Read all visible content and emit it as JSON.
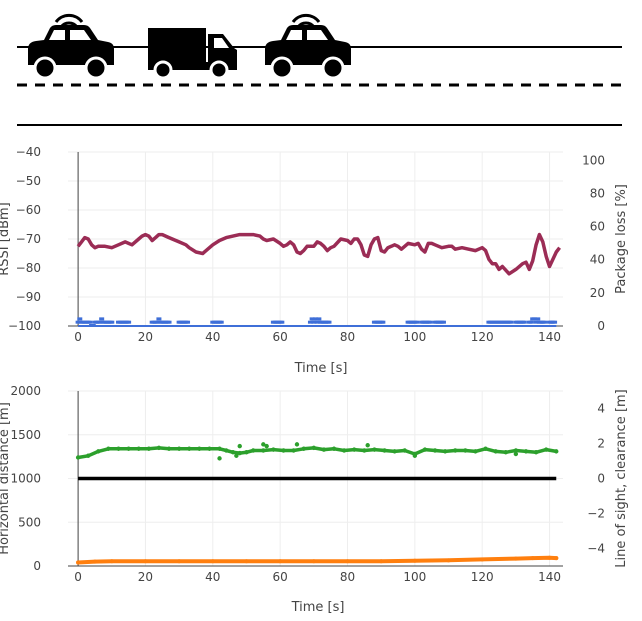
{
  "colors": {
    "rssi": "#9b2c55",
    "package_loss": "#3f6fd8",
    "horizontal_distance": "#ff7f0e",
    "clearance_green": "#2ca02c",
    "line_of_sight": "#000000"
  },
  "scene": {
    "icons": [
      "car-wifi-icon",
      "truck-icon",
      "car-wifi-icon"
    ],
    "road_lines": [
      "solid",
      "dashed",
      "solid"
    ]
  },
  "chart_data": [
    {
      "type": "line",
      "xlabel": "Time [s]",
      "ylabel": "RSSI [dBm]",
      "y2label": "Package loss [%]",
      "xlim": [
        -3,
        144
      ],
      "ylim": [
        -100,
        -40
      ],
      "y2lim": [
        0,
        105
      ],
      "xticks": [
        0,
        20,
        40,
        60,
        80,
        100,
        120,
        140
      ],
      "yticks": [
        -100,
        -90,
        -80,
        -70,
        -60,
        -50,
        -40
      ],
      "y2ticks": [
        0,
        20,
        40,
        60,
        80,
        100
      ],
      "grid": true,
      "series": [
        {
          "key": "rssi",
          "axis": "left",
          "x": [
            0,
            1,
            2,
            3,
            4,
            5,
            6,
            8,
            10,
            12,
            14,
            16,
            18,
            19,
            20,
            21,
            22,
            23,
            24,
            25,
            27,
            30,
            32,
            33,
            35,
            37,
            38,
            40,
            42,
            44,
            46,
            48,
            50,
            52,
            54,
            55,
            56,
            58,
            60,
            61,
            62,
            63,
            64,
            65,
            66,
            67,
            68,
            70,
            71,
            72,
            73,
            74,
            75,
            76,
            78,
            80,
            81,
            82,
            83,
            84,
            85,
            86,
            87,
            88,
            89,
            90,
            91,
            92,
            93,
            94,
            95,
            96,
            98,
            100,
            101,
            102,
            103,
            104,
            105,
            106,
            108,
            110,
            111,
            112,
            114,
            116,
            118,
            120,
            121,
            122,
            123,
            124,
            125,
            126,
            128,
            130,
            132,
            133,
            134,
            135,
            136,
            137,
            138,
            139,
            140,
            141,
            142,
            143
          ],
          "values": [
            -72.5,
            -71,
            -69.5,
            -70,
            -72,
            -73,
            -72.5,
            -72.5,
            -73,
            -72,
            -71,
            -72,
            -70,
            -69,
            -68.5,
            -69,
            -70.5,
            -69.5,
            -68.5,
            -68.5,
            -69.5,
            -71,
            -72,
            -73,
            -74.5,
            -75,
            -74,
            -72,
            -70.5,
            -69.5,
            -69,
            -68.5,
            -68.5,
            -68.5,
            -69,
            -70,
            -70.5,
            -70,
            -71.5,
            -72.5,
            -72,
            -71,
            -72,
            -74.5,
            -75,
            -74,
            -72.5,
            -72.5,
            -71,
            -71.5,
            -72.5,
            -74,
            -73,
            -72.5,
            -70,
            -70.5,
            -71.5,
            -70,
            -70,
            -72,
            -75.5,
            -76,
            -72,
            -70,
            -69.5,
            -74,
            -74.5,
            -73,
            -72.5,
            -72,
            -72.5,
            -73.5,
            -71.5,
            -72,
            -71.5,
            -73.5,
            -74.5,
            -71.5,
            -71.5,
            -72,
            -73,
            -72.5,
            -72.5,
            -73.5,
            -73,
            -73.5,
            -74,
            -73,
            -74,
            -77,
            -78.5,
            -78.5,
            -80.5,
            -79.5,
            -82,
            -80.5,
            -78.5,
            -78,
            -80.5,
            -77.5,
            -72,
            -68.5,
            -71,
            -76,
            -79.5,
            -77,
            -74.5,
            -73
          ]
        },
        {
          "key": "package_loss",
          "axis": "right",
          "x": [
            0,
            0.5,
            1,
            1.5,
            2,
            2.5,
            3,
            3.5,
            4,
            4.5,
            5,
            5.5,
            6,
            6.5,
            7,
            7.5,
            8,
            8.5,
            9,
            9.5,
            10,
            12,
            12.5,
            13,
            13.5,
            14,
            14.5,
            15,
            22,
            22.5,
            23,
            23.5,
            24,
            24.5,
            25,
            25.5,
            26,
            26.5,
            27,
            30,
            30.5,
            31,
            31.5,
            32,
            32.5,
            40,
            40.5,
            41,
            41.5,
            42,
            42.5,
            58,
            58.5,
            59,
            59.5,
            60,
            60.5,
            69,
            69.5,
            70,
            70.5,
            71,
            71.5,
            72,
            72.5,
            73,
            73.5,
            74,
            74.5,
            88,
            88.5,
            89,
            89.5,
            90,
            90.5,
            98,
            98.5,
            99,
            99.5,
            100,
            100.5,
            102,
            102.5,
            103,
            103.5,
            104,
            104.5,
            106,
            106.5,
            107,
            107.5,
            108,
            108.5,
            122,
            122.5,
            123,
            123.5,
            124,
            124.5,
            125,
            125.5,
            126,
            126.5,
            127,
            127.5,
            128,
            128.5,
            130,
            130.5,
            131,
            131.5,
            132,
            132.5,
            134,
            134.5,
            135,
            135.5,
            136,
            136.5,
            137,
            137.5,
            138,
            138.5,
            140,
            140.5,
            141,
            141.5
          ],
          "values": [
            2,
            4,
            2,
            2,
            2,
            2,
            2,
            2,
            0,
            0,
            2,
            2,
            2,
            2,
            4,
            2,
            2,
            2,
            2,
            2,
            2,
            2,
            2,
            2,
            2,
            2,
            2,
            2,
            2,
            2,
            2,
            2,
            4,
            2,
            2,
            2,
            2,
            2,
            2,
            2,
            2,
            2,
            2,
            2,
            2,
            2,
            2,
            2,
            2,
            2,
            2,
            2,
            2,
            2,
            2,
            2,
            2,
            2,
            4,
            2,
            4,
            2,
            4,
            2,
            2,
            2,
            2,
            2,
            2,
            2,
            2,
            2,
            2,
            2,
            2,
            2,
            2,
            2,
            2,
            2,
            2,
            2,
            2,
            2,
            2,
            2,
            2,
            2,
            2,
            2,
            2,
            2,
            2,
            2,
            2,
            2,
            2,
            2,
            2,
            2,
            2,
            2,
            2,
            2,
            2,
            2,
            2,
            2,
            2,
            2,
            2,
            2,
            2,
            2,
            2,
            4,
            4,
            2,
            4,
            2,
            2,
            2,
            2,
            2,
            2,
            2,
            2
          ]
        }
      ]
    },
    {
      "type": "scatter",
      "xlabel": "Time [s]",
      "ylabel": "Horizontal distance [m]",
      "y2label": "Line of sight, clearance [m]",
      "xlim": [
        -3,
        144
      ],
      "ylim": [
        0,
        2000
      ],
      "y2lim": [
        -5,
        5
      ],
      "xticks": [
        0,
        20,
        40,
        60,
        80,
        100,
        120,
        140
      ],
      "yticks": [
        0,
        500,
        1000,
        1500,
        2000
      ],
      "y2ticks": [
        -4,
        -2,
        0,
        2,
        4
      ],
      "grid": true,
      "series": [
        {
          "key": "horizontal_distance",
          "axis": "left",
          "x": [
            0,
            5,
            10,
            20,
            30,
            40,
            50,
            60,
            70,
            80,
            90,
            100,
            110,
            120,
            130,
            135,
            140,
            142
          ],
          "values": [
            40,
            50,
            55,
            55,
            55,
            55,
            55,
            55,
            55,
            55,
            55,
            60,
            65,
            75,
            85,
            90,
            95,
            90
          ]
        },
        {
          "key": "clearance_green",
          "axis": "right",
          "x": [
            0,
            3,
            6,
            9,
            12,
            15,
            18,
            21,
            24,
            27,
            30,
            33,
            36,
            39,
            42,
            44,
            46,
            48,
            50,
            52,
            55,
            58,
            61,
            64,
            67,
            70,
            73,
            76,
            79,
            82,
            85,
            88,
            91,
            94,
            97,
            100,
            103,
            106,
            109,
            112,
            115,
            118,
            121,
            124,
            127,
            130,
            133,
            136,
            139,
            142
          ],
          "values": [
            1.2,
            1.3,
            1.55,
            1.7,
            1.7,
            1.7,
            1.7,
            1.7,
            1.75,
            1.7,
            1.7,
            1.7,
            1.7,
            1.7,
            1.7,
            1.6,
            1.5,
            1.45,
            1.5,
            1.6,
            1.6,
            1.65,
            1.6,
            1.6,
            1.7,
            1.75,
            1.65,
            1.7,
            1.6,
            1.65,
            1.6,
            1.65,
            1.6,
            1.55,
            1.6,
            1.4,
            1.65,
            1.6,
            1.55,
            1.6,
            1.6,
            1.55,
            1.7,
            1.55,
            1.5,
            1.6,
            1.55,
            1.5,
            1.65,
            1.55
          ]
        },
        {
          "key": "clearance_outliers",
          "axis": "right",
          "x": [
            42,
            47,
            48,
            55,
            56,
            65,
            86,
            100,
            130
          ],
          "values": [
            1.15,
            1.3,
            1.85,
            1.95,
            1.85,
            1.95,
            1.9,
            1.3,
            1.4
          ]
        },
        {
          "key": "line_of_sight",
          "axis": "right",
          "x": [
            0,
            142
          ],
          "values": [
            0,
            0
          ]
        }
      ]
    }
  ]
}
